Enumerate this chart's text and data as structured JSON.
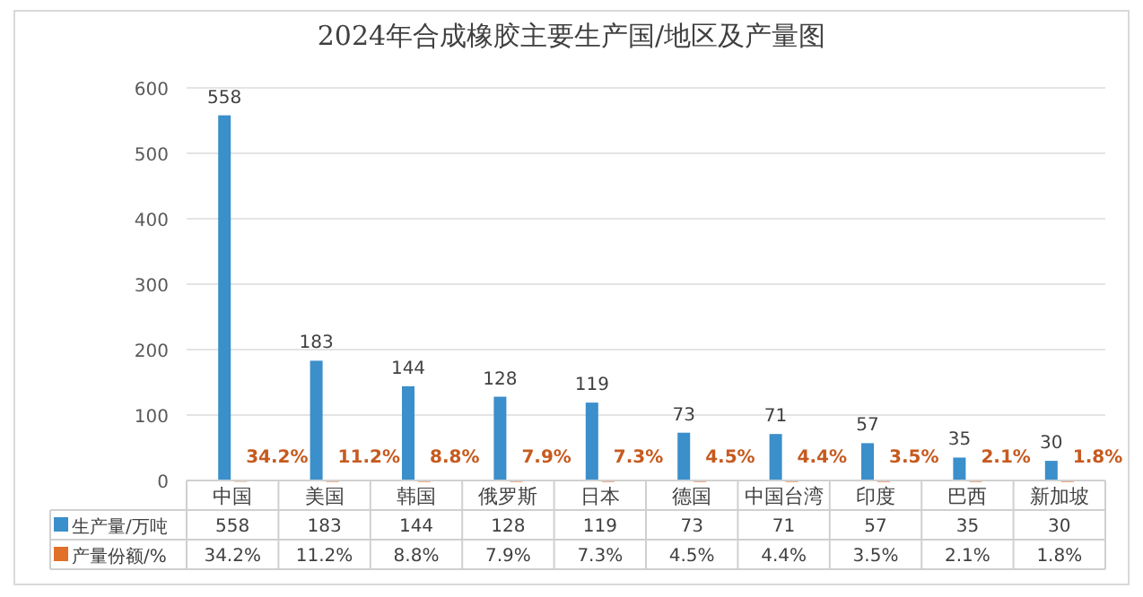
{
  "chart_data": {
    "type": "bar",
    "title": "2024年合成橡胶主要生产国/地区及产量图",
    "categories": [
      "中国",
      "美国",
      "韩国",
      "俄罗斯",
      "日本",
      "德国",
      "中国台湾",
      "印度",
      "巴西",
      "新加坡"
    ],
    "series": [
      {
        "name": "生产量/万吨",
        "color": "#3b8fca",
        "values": [
          558,
          183,
          144,
          128,
          119,
          73,
          71,
          57,
          35,
          30
        ],
        "value_labels": [
          "558",
          "183",
          "144",
          "128",
          "119",
          "73",
          "71",
          "57",
          "35",
          "30"
        ]
      },
      {
        "name": "产量份额/%",
        "color": "#e0702a",
        "values": [
          0.342,
          0.112,
          0.088,
          0.079,
          0.073,
          0.045,
          0.044,
          0.035,
          0.021,
          0.018
        ],
        "value_labels": [
          "34.2%",
          "11.2%",
          "8.8%",
          "7.9%",
          "7.3%",
          "4.5%",
          "4.4%",
          "3.5%",
          "2.1%",
          "1.8%"
        ]
      }
    ],
    "ylim": [
      0,
      600
    ],
    "yticks": [
      0,
      100,
      200,
      300,
      400,
      500,
      600
    ],
    "grid": "y",
    "legend": "bottom"
  }
}
